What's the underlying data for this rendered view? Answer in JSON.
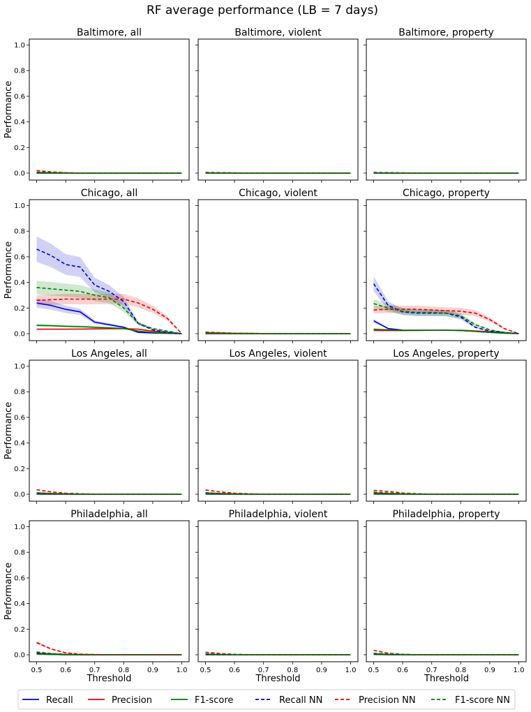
{
  "chart_data": {
    "type": "line",
    "title": "RF average performance (LB = 7 days)",
    "xlabel": "Threshold",
    "ylabel": "Performance",
    "xlim": [
      0.5,
      1.0
    ],
    "ylim": [
      0.0,
      1.0
    ],
    "x_ticks": [
      "0.5",
      "0.6",
      "0.7",
      "0.8",
      "0.9",
      "1.0"
    ],
    "y_ticks": [
      "0.0",
      "0.2",
      "0.4",
      "0.6",
      "0.8",
      "1.0"
    ],
    "x": [
      0.5,
      0.55,
      0.6,
      0.65,
      0.7,
      0.75,
      0.8,
      0.85,
      0.9,
      0.95,
      1.0
    ],
    "legend": [
      "Recall",
      "Precision",
      "F1-score",
      "Recall NN",
      "Precision NN",
      "F1-score NN"
    ],
    "series_colors": {
      "Recall": "#0000cc",
      "Precision": "#e00000",
      "F1-score": "#007a00",
      "Recall NN": "#0000cc",
      "Precision NN": "#e00000",
      "F1-score NN": "#007a00"
    },
    "series_dashed": {
      "Recall": false,
      "Precision": false,
      "F1-score": false,
      "Recall NN": true,
      "Precision NN": true,
      "F1-score NN": true
    },
    "panels": [
      {
        "title": "Baltimore, all",
        "series": {
          "Recall": [
            0.0,
            0.0,
            0.0,
            0.0,
            0.0,
            0.0,
            0.0,
            0.0,
            0.0,
            0.0,
            0.0
          ],
          "Precision": [
            0.005,
            0.003,
            0.002,
            0.0,
            0.0,
            0.0,
            0.0,
            0.0,
            0.0,
            0.0,
            0.0
          ],
          "F1-score": [
            0.0,
            0.0,
            0.0,
            0.0,
            0.0,
            0.0,
            0.0,
            0.0,
            0.0,
            0.0,
            0.0
          ],
          "Recall NN": [
            0.005,
            0.002,
            0.0,
            0.0,
            0.0,
            0.0,
            0.0,
            0.0,
            0.0,
            0.0,
            0.0
          ],
          "Precision NN": [
            0.02,
            0.01,
            0.003,
            0.0,
            0.0,
            0.0,
            0.0,
            0.0,
            0.0,
            0.0,
            0.0
          ],
          "F1-score NN": [
            0.008,
            0.003,
            0.0,
            0.0,
            0.0,
            0.0,
            0.0,
            0.0,
            0.0,
            0.0,
            0.0
          ]
        }
      },
      {
        "title": "Baltimore, violent",
        "series": {
          "Recall": [
            0.0,
            0.0,
            0.0,
            0.0,
            0.0,
            0.0,
            0.0,
            0.0,
            0.0,
            0.0,
            0.0
          ],
          "Precision": [
            0.002,
            0.0,
            0.0,
            0.0,
            0.0,
            0.0,
            0.0,
            0.0,
            0.0,
            0.0,
            0.0
          ],
          "F1-score": [
            0.0,
            0.0,
            0.0,
            0.0,
            0.0,
            0.0,
            0.0,
            0.0,
            0.0,
            0.0,
            0.0
          ],
          "Recall NN": [
            0.002,
            0.0,
            0.0,
            0.0,
            0.0,
            0.0,
            0.0,
            0.0,
            0.0,
            0.0,
            0.0
          ],
          "Precision NN": [
            0.006,
            0.004,
            0.002,
            0.0,
            0.0,
            0.0,
            0.0,
            0.0,
            0.0,
            0.0,
            0.0
          ],
          "F1-score NN": [
            0.003,
            0.001,
            0.0,
            0.0,
            0.0,
            0.0,
            0.0,
            0.0,
            0.0,
            0.0,
            0.0
          ]
        }
      },
      {
        "title": "Baltimore, property",
        "series": {
          "Recall": [
            0.0,
            0.0,
            0.0,
            0.0,
            0.0,
            0.0,
            0.0,
            0.0,
            0.0,
            0.0,
            0.0
          ],
          "Precision": [
            0.002,
            0.0,
            0.0,
            0.0,
            0.0,
            0.0,
            0.0,
            0.0,
            0.0,
            0.0,
            0.0
          ],
          "F1-score": [
            0.0,
            0.0,
            0.0,
            0.0,
            0.0,
            0.0,
            0.0,
            0.0,
            0.0,
            0.0,
            0.0
          ],
          "Recall NN": [
            0.002,
            0.0,
            0.0,
            0.0,
            0.0,
            0.0,
            0.0,
            0.0,
            0.0,
            0.0,
            0.0
          ],
          "Precision NN": [
            0.006,
            0.004,
            0.002,
            0.0,
            0.0,
            0.0,
            0.0,
            0.0,
            0.0,
            0.0,
            0.0
          ],
          "F1-score NN": [
            0.004,
            0.002,
            0.0,
            0.0,
            0.0,
            0.0,
            0.0,
            0.0,
            0.0,
            0.0,
            0.0
          ]
        }
      },
      {
        "title": "Chicago, all",
        "series": {
          "Recall": [
            0.24,
            0.22,
            0.19,
            0.17,
            0.09,
            0.07,
            0.05,
            0.01,
            0.005,
            0.002,
            0.0
          ],
          "Precision": [
            0.035,
            0.035,
            0.035,
            0.036,
            0.037,
            0.038,
            0.039,
            0.035,
            0.02,
            0.01,
            0.0
          ],
          "F1-score": [
            0.065,
            0.062,
            0.058,
            0.055,
            0.05,
            0.045,
            0.04,
            0.02,
            0.01,
            0.004,
            0.0
          ],
          "Recall NN": [
            0.66,
            0.61,
            0.54,
            0.52,
            0.38,
            0.33,
            0.25,
            0.08,
            0.03,
            0.01,
            0.0
          ],
          "Precision NN": [
            0.26,
            0.265,
            0.27,
            0.27,
            0.27,
            0.27,
            0.27,
            0.24,
            0.19,
            0.12,
            0.0
          ],
          "F1-score NN": [
            0.36,
            0.35,
            0.34,
            0.33,
            0.3,
            0.28,
            0.2,
            0.08,
            0.04,
            0.02,
            0.0
          ]
        }
      },
      {
        "title": "Chicago, violent",
        "series": {
          "Recall": [
            0.0,
            0.0,
            0.0,
            0.0,
            0.0,
            0.0,
            0.0,
            0.0,
            0.0,
            0.0,
            0.0
          ],
          "Precision": [
            0.008,
            0.005,
            0.003,
            0.002,
            0.001,
            0.0,
            0.0,
            0.0,
            0.0,
            0.0,
            0.0
          ],
          "F1-score": [
            0.0,
            0.0,
            0.0,
            0.0,
            0.0,
            0.0,
            0.0,
            0.0,
            0.0,
            0.0,
            0.0
          ],
          "Recall NN": [
            0.003,
            0.001,
            0.0,
            0.0,
            0.0,
            0.0,
            0.0,
            0.0,
            0.0,
            0.0,
            0.0
          ],
          "Precision NN": [
            0.012,
            0.008,
            0.004,
            0.002,
            0.001,
            0.0,
            0.0,
            0.0,
            0.0,
            0.0,
            0.0
          ],
          "F1-score NN": [
            0.005,
            0.002,
            0.0,
            0.0,
            0.0,
            0.0,
            0.0,
            0.0,
            0.0,
            0.0,
            0.0
          ]
        }
      },
      {
        "title": "Chicago, property",
        "series": {
          "Recall": [
            0.1,
            0.04,
            0.028,
            0.027,
            0.027,
            0.027,
            0.024,
            0.018,
            0.01,
            0.004,
            0.0
          ],
          "Precision": [
            0.025,
            0.024,
            0.024,
            0.025,
            0.026,
            0.027,
            0.027,
            0.022,
            0.015,
            0.008,
            0.0
          ],
          "F1-score": [
            0.035,
            0.03,
            0.026,
            0.026,
            0.026,
            0.026,
            0.025,
            0.018,
            0.01,
            0.004,
            0.0
          ],
          "Recall NN": [
            0.39,
            0.22,
            0.17,
            0.16,
            0.16,
            0.16,
            0.13,
            0.05,
            0.02,
            0.01,
            0.0
          ],
          "Precision NN": [
            0.185,
            0.19,
            0.19,
            0.19,
            0.185,
            0.18,
            0.175,
            0.16,
            0.11,
            0.04,
            0.0
          ],
          "F1-score NN": [
            0.235,
            0.2,
            0.175,
            0.165,
            0.165,
            0.16,
            0.14,
            0.07,
            0.03,
            0.01,
            0.0
          ]
        }
      },
      {
        "title": "Los Angeles, all",
        "series": {
          "Recall": [
            0.0,
            0.0,
            0.0,
            0.0,
            0.0,
            0.0,
            0.0,
            0.0,
            0.0,
            0.0,
            0.0
          ],
          "Precision": [
            0.01,
            0.006,
            0.003,
            0.001,
            0.0,
            0.0,
            0.0,
            0.0,
            0.0,
            0.0,
            0.0
          ],
          "F1-score": [
            0.002,
            0.0,
            0.0,
            0.0,
            0.0,
            0.0,
            0.0,
            0.0,
            0.0,
            0.0,
            0.0
          ],
          "Recall NN": [
            0.008,
            0.003,
            0.001,
            0.0,
            0.0,
            0.0,
            0.0,
            0.0,
            0.0,
            0.0,
            0.0
          ],
          "Precision NN": [
            0.035,
            0.018,
            0.008,
            0.003,
            0.001,
            0.0,
            0.0,
            0.0,
            0.0,
            0.0,
            0.0
          ],
          "F1-score NN": [
            0.012,
            0.006,
            0.002,
            0.0,
            0.0,
            0.0,
            0.0,
            0.0,
            0.0,
            0.0,
            0.0
          ]
        }
      },
      {
        "title": "Los Angeles, violent",
        "series": {
          "Recall": [
            0.0,
            0.0,
            0.0,
            0.0,
            0.0,
            0.0,
            0.0,
            0.0,
            0.0,
            0.0,
            0.0
          ],
          "Precision": [
            0.01,
            0.006,
            0.003,
            0.001,
            0.0,
            0.0,
            0.0,
            0.0,
            0.0,
            0.0,
            0.0
          ],
          "F1-score": [
            0.002,
            0.0,
            0.0,
            0.0,
            0.0,
            0.0,
            0.0,
            0.0,
            0.0,
            0.0,
            0.0
          ],
          "Recall NN": [
            0.008,
            0.003,
            0.001,
            0.0,
            0.0,
            0.0,
            0.0,
            0.0,
            0.0,
            0.0,
            0.0
          ],
          "Precision NN": [
            0.033,
            0.018,
            0.008,
            0.003,
            0.001,
            0.0,
            0.0,
            0.0,
            0.0,
            0.0,
            0.0
          ],
          "F1-score NN": [
            0.012,
            0.006,
            0.002,
            0.0,
            0.0,
            0.0,
            0.0,
            0.0,
            0.0,
            0.0,
            0.0
          ]
        }
      },
      {
        "title": "Los Angeles, property",
        "series": {
          "Recall": [
            0.0,
            0.0,
            0.0,
            0.0,
            0.0,
            0.0,
            0.0,
            0.0,
            0.0,
            0.0,
            0.0
          ],
          "Precision": [
            0.01,
            0.006,
            0.003,
            0.001,
            0.0,
            0.0,
            0.0,
            0.0,
            0.0,
            0.0,
            0.0
          ],
          "F1-score": [
            0.002,
            0.0,
            0.0,
            0.0,
            0.0,
            0.0,
            0.0,
            0.0,
            0.0,
            0.0,
            0.0
          ],
          "Recall NN": [
            0.015,
            0.008,
            0.003,
            0.001,
            0.0,
            0.0,
            0.0,
            0.0,
            0.0,
            0.0,
            0.0
          ],
          "Precision NN": [
            0.03,
            0.022,
            0.01,
            0.004,
            0.001,
            0.0,
            0.0,
            0.0,
            0.0,
            0.0,
            0.0
          ],
          "F1-score NN": [
            0.016,
            0.01,
            0.004,
            0.001,
            0.0,
            0.0,
            0.0,
            0.0,
            0.0,
            0.0,
            0.0
          ]
        }
      },
      {
        "title": "Philadelphia, all",
        "series": {
          "Recall": [
            0.006,
            0.002,
            0.0,
            0.0,
            0.0,
            0.0,
            0.0,
            0.0,
            0.0,
            0.0,
            0.0
          ],
          "Precision": [
            0.012,
            0.008,
            0.003,
            0.001,
            0.0,
            0.0,
            0.0,
            0.0,
            0.0,
            0.0,
            0.0
          ],
          "F1-score": [
            0.006,
            0.002,
            0.0,
            0.0,
            0.0,
            0.0,
            0.0,
            0.0,
            0.0,
            0.0,
            0.0
          ],
          "Recall NN": [
            0.015,
            0.008,
            0.002,
            0.0,
            0.0,
            0.0,
            0.0,
            0.0,
            0.0,
            0.0,
            0.0
          ],
          "Precision NN": [
            0.095,
            0.045,
            0.015,
            0.005,
            0.002,
            0.0,
            0.0,
            0.0,
            0.0,
            0.0,
            0.0
          ],
          "F1-score NN": [
            0.022,
            0.01,
            0.003,
            0.0,
            0.0,
            0.0,
            0.0,
            0.0,
            0.0,
            0.0,
            0.0
          ]
        }
      },
      {
        "title": "Philadelphia, violent",
        "series": {
          "Recall": [
            0.0,
            0.0,
            0.0,
            0.0,
            0.0,
            0.0,
            0.0,
            0.0,
            0.0,
            0.0,
            0.0
          ],
          "Precision": [
            0.005,
            0.002,
            0.001,
            0.0,
            0.0,
            0.0,
            0.0,
            0.0,
            0.0,
            0.0,
            0.0
          ],
          "F1-score": [
            0.001,
            0.0,
            0.0,
            0.0,
            0.0,
            0.0,
            0.0,
            0.0,
            0.0,
            0.0,
            0.0
          ],
          "Recall NN": [
            0.004,
            0.001,
            0.0,
            0.0,
            0.0,
            0.0,
            0.0,
            0.0,
            0.0,
            0.0,
            0.0
          ],
          "Precision NN": [
            0.02,
            0.01,
            0.004,
            0.001,
            0.0,
            0.0,
            0.0,
            0.0,
            0.0,
            0.0,
            0.0
          ],
          "F1-score NN": [
            0.008,
            0.003,
            0.001,
            0.0,
            0.0,
            0.0,
            0.0,
            0.0,
            0.0,
            0.0,
            0.0
          ]
        }
      },
      {
        "title": "Philadelphia, property",
        "series": {
          "Recall": [
            0.002,
            0.0,
            0.0,
            0.0,
            0.0,
            0.0,
            0.0,
            0.0,
            0.0,
            0.0,
            0.0
          ],
          "Precision": [
            0.008,
            0.004,
            0.002,
            0.0,
            0.0,
            0.0,
            0.0,
            0.0,
            0.0,
            0.0,
            0.0
          ],
          "F1-score": [
            0.003,
            0.001,
            0.0,
            0.0,
            0.0,
            0.0,
            0.0,
            0.0,
            0.0,
            0.0,
            0.0
          ],
          "Recall NN": [
            0.008,
            0.004,
            0.001,
            0.0,
            0.0,
            0.0,
            0.0,
            0.0,
            0.0,
            0.0,
            0.0
          ],
          "Precision NN": [
            0.035,
            0.012,
            0.004,
            0.001,
            0.0,
            0.0,
            0.0,
            0.0,
            0.0,
            0.0,
            0.0
          ],
          "F1-score NN": [
            0.012,
            0.005,
            0.002,
            0.0,
            0.0,
            0.0,
            0.0,
            0.0,
            0.0,
            0.0,
            0.0
          ]
        }
      }
    ]
  }
}
